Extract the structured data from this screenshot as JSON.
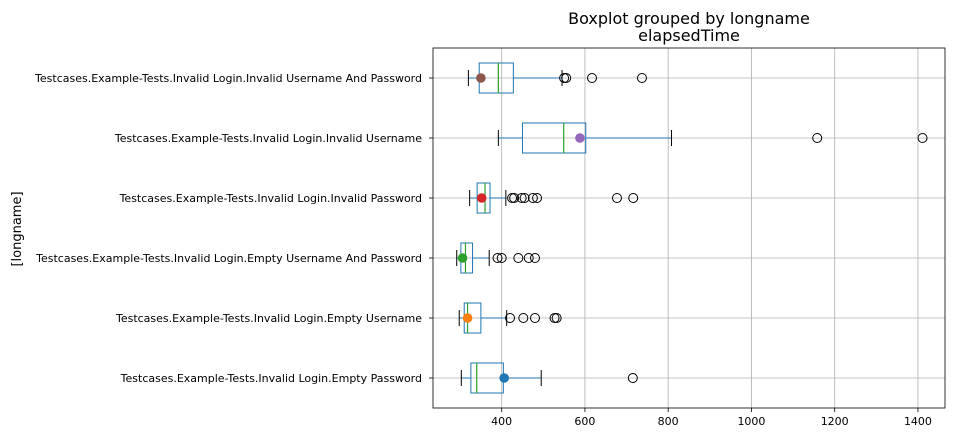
{
  "title_line1": "Boxplot grouped by longname",
  "title_line2": "elapsedTime",
  "chart_data": {
    "type": "boxplot",
    "orientation": "horizontal",
    "title": "Boxplot grouped by longname",
    "subtitle": "elapsedTime",
    "ylabel": "[longname]",
    "xlabel": "",
    "xlim": [
      235,
      1465
    ],
    "xticks": [
      400,
      600,
      800,
      1000,
      1200,
      1400
    ],
    "grid": true,
    "box_color": "#1f77b4",
    "median_color": "#2ca02c",
    "categories": [
      "Testcases.Example-Tests.Invalid Login.Empty Password",
      "Testcases.Example-Tests.Invalid Login.Empty Username",
      "Testcases.Example-Tests.Invalid Login.Empty Username And Password",
      "Testcases.Example-Tests.Invalid Login.Invalid Password",
      "Testcases.Example-Tests.Invalid Login.Invalid Username",
      "Testcases.Example-Tests.Invalid Login.Invalid Username And Password"
    ],
    "boxes": [
      {
        "whislo": 303,
        "q1": 326,
        "med": 340,
        "q3": 404,
        "whishi": 495,
        "fliers": [
          715
        ],
        "mean": 406,
        "mean_color": "#1f77b4"
      },
      {
        "whislo": 298,
        "q1": 310,
        "med": 318,
        "q3": 350,
        "whishi": 412,
        "fliers": [
          420,
          452,
          480,
          527,
          532
        ],
        "mean": 318,
        "mean_color": "#ff7f0e"
      },
      {
        "whislo": 292,
        "q1": 302,
        "med": 313,
        "q3": 330,
        "whishi": 370,
        "fliers": [
          390,
          400,
          440,
          465,
          480
        ],
        "mean": 306,
        "mean_color": "#2ca02c"
      },
      {
        "whislo": 323,
        "q1": 341,
        "med": 360,
        "q3": 372,
        "whishi": 410,
        "fliers": [
          425,
          430,
          448,
          455,
          475,
          485,
          677,
          716
        ],
        "mean": 352,
        "mean_color": "#d62728"
      },
      {
        "whislo": 392,
        "q1": 450,
        "med": 549,
        "q3": 602,
        "whishi": 808,
        "fliers": [
          1158,
          1411
        ],
        "mean": 588,
        "mean_color": "#9467bd"
      },
      {
        "whislo": 320,
        "q1": 346,
        "med": 392,
        "q3": 428,
        "whishi": 545,
        "fliers": [
          550,
          555,
          617,
          737
        ],
        "mean": 350,
        "mean_color": "#8c564b"
      }
    ]
  }
}
